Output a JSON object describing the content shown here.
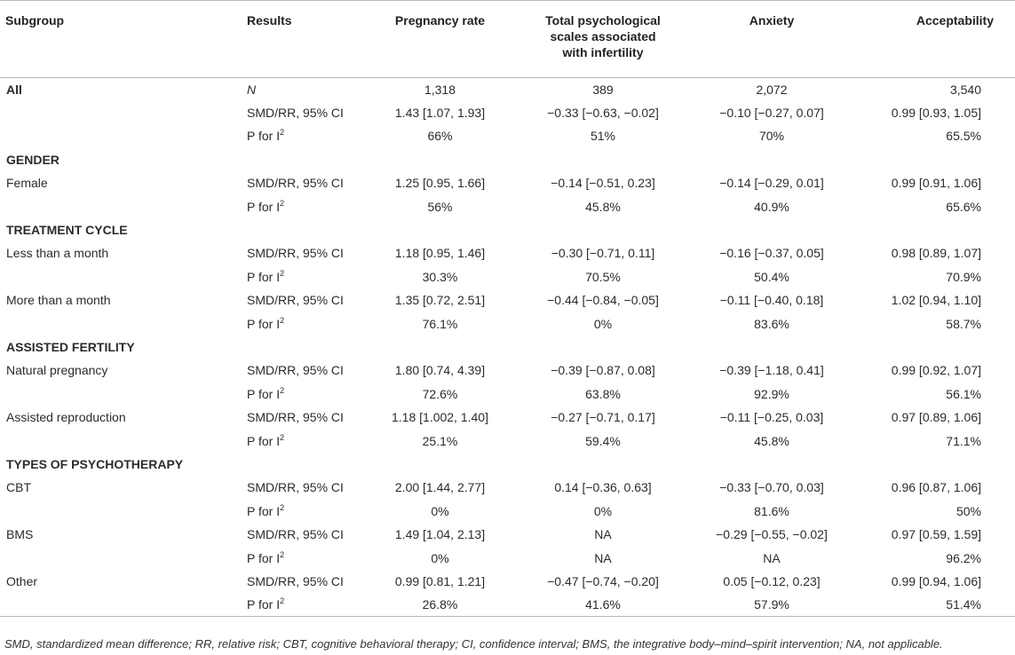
{
  "table": {
    "headers": {
      "subgroup": "Subgroup",
      "results": "Results",
      "pregnancy": "Pregnancy rate",
      "psych_l1": "Total psychological",
      "psych_l2": "scales associated",
      "psych_l3": "with infertility",
      "anxiety": "Anxiety",
      "acceptability": "Acceptability"
    },
    "labels": {
      "smd": "SMD/RR, 95% CI",
      "p_prefix": "P for I",
      "p_sup": "2"
    },
    "all": {
      "label": "All",
      "n_label": "N",
      "n": [
        "1,318",
        "389",
        "2,072",
        "3,540"
      ],
      "smd": [
        "1.43 [1.07, 1.93]",
        "−0.33 [−0.63, −0.02]",
        "−0.10 [−0.27, 0.07]",
        "0.99 [0.93, 1.05]"
      ],
      "p": [
        "66%",
        "51%",
        "70%",
        "65.5%"
      ]
    },
    "gender": {
      "title": "GENDER",
      "female": {
        "label": "Female",
        "smd": [
          "1.25 [0.95, 1.66]",
          "−0.14 [−0.51, 0.23]",
          "−0.14 [−0.29, 0.01]",
          "0.99 [0.91, 1.06]"
        ],
        "p": [
          "56%",
          "45.8%",
          "40.9%",
          "65.6%"
        ]
      }
    },
    "treatment": {
      "title": "TREATMENT CYCLE",
      "less": {
        "label": "Less than a month",
        "smd": [
          "1.18 [0.95, 1.46]",
          "−0.30 [−0.71, 0.11]",
          "−0.16 [−0.37, 0.05]",
          "0.98 [0.89, 1.07]"
        ],
        "p": [
          "30.3%",
          "70.5%",
          "50.4%",
          "70.9%"
        ]
      },
      "more": {
        "label": "More than a month",
        "smd": [
          "1.35 [0.72, 2.51]",
          "−0.44 [−0.84, −0.05]",
          "−0.11 [−0.40, 0.18]",
          "1.02 [0.94, 1.10]"
        ],
        "p": [
          "76.1%",
          "0%",
          "83.6%",
          "58.7%"
        ]
      }
    },
    "assisted": {
      "title": "ASSISTED FERTILITY",
      "natural": {
        "label": "Natural pregnancy",
        "smd": [
          "1.80 [0.74, 4.39]",
          "−0.39 [−0.87, 0.08]",
          "−0.39 [−1.18, 0.41]",
          "0.99 [0.92, 1.07]"
        ],
        "p": [
          "72.6%",
          "63.8%",
          "92.9%",
          "56.1%"
        ]
      },
      "reproduction": {
        "label": "Assisted reproduction",
        "smd": [
          "1.18 [1.002, 1.40]",
          "−0.27 [−0.71, 0.17]",
          "−0.11 [−0.25, 0.03]",
          "0.97 [0.89, 1.06]"
        ],
        "p": [
          "25.1%",
          "59.4%",
          "45.8%",
          "71.1%"
        ]
      }
    },
    "psychotherapy": {
      "title": "TYPES OF PSYCHOTHERAPY",
      "cbt": {
        "label": "CBT",
        "smd": [
          "2.00 [1.44, 2.77]",
          "0.14 [−0.36, 0.63]",
          "−0.33 [−0.70, 0.03]",
          "0.96 [0.87, 1.06]"
        ],
        "p": [
          "0%",
          "0%",
          "81.6%",
          "50%"
        ]
      },
      "bms": {
        "label": "BMS",
        "smd": [
          "1.49 [1.04, 2.13]",
          "NA",
          "−0.29 [−0.55, −0.02]",
          "0.97 [0.59, 1.59]"
        ],
        "p": [
          "0%",
          "NA",
          "NA",
          "96.2%"
        ]
      },
      "other": {
        "label": "Other",
        "smd": [
          "0.99 [0.81, 1.21]",
          "−0.47 [−0.74, −0.20]",
          "0.05 [−0.12, 0.23]",
          "0.99 [0.94, 1.06]"
        ],
        "p": [
          "26.8%",
          "41.6%",
          "57.9%",
          "51.4%"
        ]
      }
    }
  },
  "footnote": "SMD, standardized mean difference; RR, relative risk; CBT, cognitive behavioral therapy; CI, confidence interval; BMS, the integrative body–mind–spirit intervention; NA, not applicable."
}
